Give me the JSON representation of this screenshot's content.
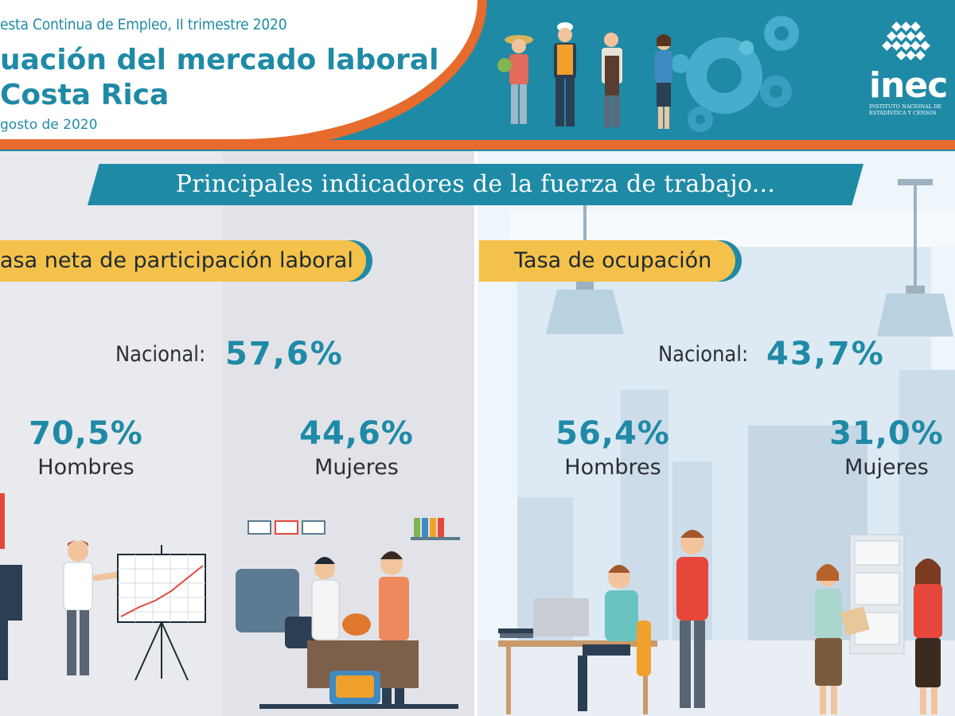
{
  "header": {
    "subtitle": "esta Continua de Empleo, II trimestre 2020",
    "title_line1": "uación del mercado laboral",
    "title_line2": "Costa Rica",
    "date": "gosto de 2020",
    "logo_text": "inec",
    "logo_caption_line1": "INSTITUTO NACIONAL DE",
    "logo_caption_line2": "ESTADÍSTICA Y CENSOS"
  },
  "banner": {
    "text": "Principales indicadores de la fuerza de trabajo..."
  },
  "colors": {
    "teal": "#1f8aa6",
    "orange": "#e66b2d",
    "yellow": "#f4c14a"
  },
  "participacion": {
    "label": "asa neta de participación laboral",
    "nacional_label": "Nacional:",
    "nacional_value": "57,6%",
    "hombres_value": "70,5%",
    "hombres_label": "Hombres",
    "mujeres_value": "44,6%",
    "mujeres_label": "Mujeres"
  },
  "ocupacion": {
    "label": "Tasa de ocupación",
    "nacional_label": "Nacional:",
    "nacional_value": "43,7%",
    "hombres_value": "56,4%",
    "hombres_label": "Hombres",
    "mujeres_value": "31,0%",
    "mujeres_label": "Mujeres"
  }
}
